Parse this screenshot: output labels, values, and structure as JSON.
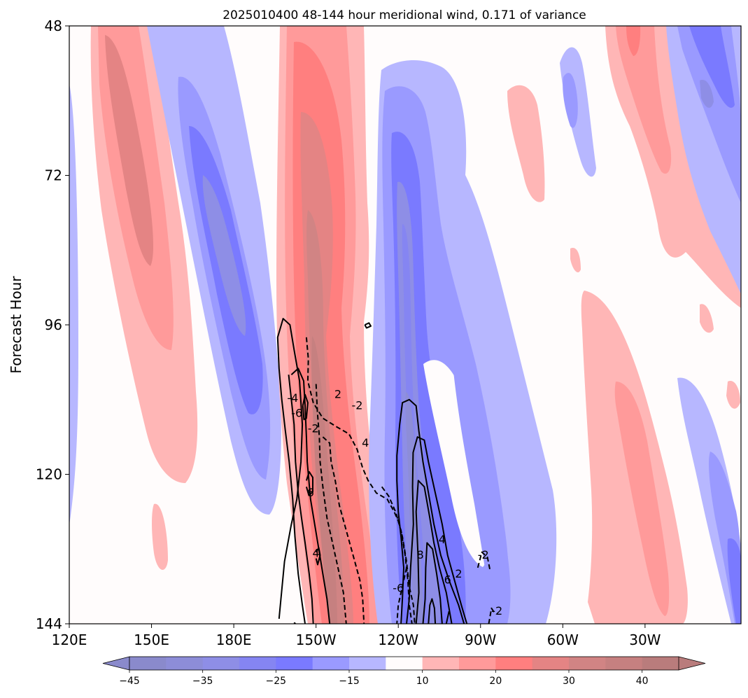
{
  "chart_data": {
    "type": "heatmap",
    "title": "2025010400 48-144 hour meridional wind, 0.171 of variance",
    "xlabel": "",
    "ylabel": "Forecast Hour",
    "x_ticks": [
      "120E",
      "150E",
      "180E",
      "150W",
      "120W",
      "90W",
      "60W",
      "30W"
    ],
    "x_tick_lon": [
      120,
      150,
      180,
      210,
      240,
      270,
      300,
      330
    ],
    "xlim": [
      120,
      365
    ],
    "y_ticks": [
      "48",
      "72",
      "96",
      "120",
      "144"
    ],
    "y_tick_values": [
      48,
      72,
      96,
      120,
      144
    ],
    "ylim": [
      48,
      144
    ],
    "y_inverted": true,
    "fill_levels": [
      -45,
      -40,
      -35,
      -30,
      -25,
      -20,
      -15,
      -10,
      10,
      15,
      20,
      25,
      30,
      35,
      40,
      45
    ],
    "fill_colors": [
      "#8a8acc",
      "#8d8dd8",
      "#8e8ee6",
      "#8585f2",
      "#7a7aff",
      "#9a9aff",
      "#b7b7ff",
      "#fffcfc",
      "#ffb6b6",
      "#ff9a9a",
      "#ff7f7f",
      "#e48484",
      "#d18484",
      "#c68080",
      "#b97c7c"
    ],
    "colorbar_ticks": [
      "−45",
      "−35",
      "−25",
      "−15",
      "10",
      "20",
      "30",
      "40"
    ],
    "contour_labels": [
      {
        "text": "-4",
        "lon": 201.5,
        "hr": 107.8
      },
      {
        "text": "-6",
        "lon": 203,
        "hr": 110.2
      },
      {
        "text": "-2",
        "lon": 209,
        "hr": 112.7
      },
      {
        "text": "6",
        "lon": 208,
        "hr": 123.0
      },
      {
        "text": "4",
        "lon": 210,
        "hr": 132.7
      },
      {
        "text": "2",
        "lon": 218,
        "hr": 107.2
      },
      {
        "text": "-2",
        "lon": 225,
        "hr": 109.0
      },
      {
        "text": "4",
        "lon": 228,
        "hr": 115.0
      },
      {
        "text": "-6",
        "lon": 240,
        "hr": 138.3
      },
      {
        "text": "8",
        "lon": 248,
        "hr": 133.0
      },
      {
        "text": "4",
        "lon": 256,
        "hr": 130.5
      },
      {
        "text": "2",
        "lon": 262,
        "hr": 136.0
      },
      {
        "text": "6",
        "lon": 258,
        "hr": 137.0
      },
      {
        "text": "-2",
        "lon": 271,
        "hr": 133.0
      },
      {
        "text": "-2",
        "lon": 276,
        "hr": 142.0
      }
    ],
    "contour_lines": [
      {
        "style": "solid",
        "pts": [
          [
            196.5,
            143.2
          ],
          [
            197.2,
            140
          ],
          [
            198.5,
            134
          ],
          [
            201,
            128
          ],
          [
            203,
            124
          ],
          [
            204.5,
            118
          ],
          [
            205,
            112
          ],
          [
            204,
            105
          ],
          [
            202,
            100
          ],
          [
            200.5,
            96
          ],
          [
            198,
            95
          ],
          [
            196,
            98
          ],
          [
            196.5,
            103
          ],
          [
            197.5,
            108
          ],
          [
            198.8,
            113
          ],
          [
            200.2,
            118
          ],
          [
            201.5,
            124
          ],
          [
            202.3,
            130
          ],
          [
            203.5,
            136
          ],
          [
            205,
            141
          ],
          [
            206,
            144
          ]
        ]
      },
      {
        "style": "solid",
        "pts": [
          [
            201,
            104
          ],
          [
            203.5,
            103
          ],
          [
            205.5,
            105
          ],
          [
            206,
            109
          ],
          [
            206.5,
            114
          ],
          [
            206.8,
            118
          ],
          [
            208,
            124
          ],
          [
            209.5,
            128
          ],
          [
            211,
            132
          ],
          [
            212.5,
            136
          ],
          [
            214,
            140
          ],
          [
            215,
            144
          ]
        ]
      },
      {
        "style": "solid",
        "pts": [
          [
            200,
            104
          ],
          [
            201,
            108
          ],
          [
            202,
            112
          ],
          [
            202.5,
            118
          ],
          [
            203.5,
            123
          ],
          [
            204.7,
            127
          ],
          [
            206,
            131
          ],
          [
            207.5,
            136
          ],
          [
            208.5,
            140
          ],
          [
            209,
            144
          ]
        ]
      },
      {
        "style": "solid",
        "pts": [
          [
            205.2,
            109
          ],
          [
            206,
            107.2
          ],
          [
            207,
            108.5
          ],
          [
            206.5,
            111
          ],
          [
            205.6,
            111.2
          ],
          [
            205.2,
            109
          ]
        ]
      },
      {
        "style": "solid",
        "pts": [
          [
            206.5,
            121
          ],
          [
            207.5,
            119.6
          ],
          [
            208.8,
            120.5
          ],
          [
            208.8,
            122.8
          ],
          [
            207.4,
            123.4
          ],
          [
            206.5,
            122
          ]
        ]
      },
      {
        "style": "solid",
        "pts": [
          [
            210,
            132.5
          ],
          [
            211,
            131.8
          ],
          [
            211.5,
            133
          ],
          [
            210.6,
            134.5
          ],
          [
            210,
            133.5
          ]
        ]
      },
      {
        "style": "dashed",
        "pts": [
          [
            206.5,
            98
          ],
          [
            207.2,
            101.5
          ],
          [
            207,
            105
          ],
          [
            209,
            108.5
          ],
          [
            212.5,
            111
          ],
          [
            218,
            112.5
          ],
          [
            222,
            113.5
          ],
          [
            225,
            116
          ],
          [
            227,
            119
          ],
          [
            229,
            121
          ],
          [
            232,
            123
          ],
          [
            236,
            124
          ],
          [
            238.5,
            126
          ],
          [
            240,
            127.5
          ],
          [
            241.5,
            130
          ],
          [
            243,
            134
          ],
          [
            244,
            138
          ],
          [
            245.5,
            141
          ],
          [
            246,
            144
          ]
        ]
      },
      {
        "style": "dashed",
        "pts": [
          [
            210,
            105.5
          ],
          [
            210.5,
            110
          ],
          [
            211.2,
            114
          ],
          [
            211.5,
            118
          ],
          [
            212.5,
            122
          ],
          [
            214,
            127
          ],
          [
            216,
            131
          ],
          [
            218,
            135
          ],
          [
            220,
            139
          ],
          [
            221,
            144
          ]
        ]
      },
      {
        "style": "dashed",
        "pts": [
          [
            212.5,
            114
          ],
          [
            215,
            115
          ],
          [
            215.5,
            118
          ],
          [
            217,
            121
          ],
          [
            218.5,
            125
          ],
          [
            221,
            129
          ],
          [
            223.5,
            133
          ],
          [
            226,
            137
          ],
          [
            227,
            140
          ],
          [
            227.5,
            144
          ]
        ]
      },
      {
        "style": "dashed",
        "pts": [
          [
            234,
            122
          ],
          [
            236.5,
            123.5
          ],
          [
            239,
            126
          ],
          [
            241,
            129
          ],
          [
            242.5,
            133
          ],
          [
            243.5,
            137
          ],
          [
            244,
            141
          ],
          [
            245,
            144
          ]
        ]
      },
      {
        "style": "solid",
        "pts": [
          [
            241,
            144
          ],
          [
            241.5,
            140
          ],
          [
            242,
            135
          ],
          [
            241,
            130
          ],
          [
            240,
            126
          ],
          [
            239.5,
            121
          ],
          [
            239.5,
            117
          ],
          [
            240.5,
            112
          ],
          [
            241.5,
            108.5
          ],
          [
            244,
            108
          ],
          [
            246.5,
            109
          ],
          [
            247.5,
            113
          ],
          [
            249,
            118
          ],
          [
            251,
            123
          ],
          [
            253,
            128
          ],
          [
            255.5,
            133
          ],
          [
            258.5,
            137
          ],
          [
            262,
            141
          ],
          [
            264,
            144
          ]
        ]
      },
      {
        "style": "solid",
        "pts": [
          [
            243,
            144
          ],
          [
            244,
            140
          ],
          [
            244.5,
            135
          ],
          [
            245.5,
            128
          ],
          [
            245.2,
            122
          ],
          [
            245.4,
            116.5
          ],
          [
            247,
            114
          ],
          [
            249.5,
            114.5
          ],
          [
            251,
            118
          ],
          [
            253.5,
            123
          ],
          [
            256,
            128
          ],
          [
            258,
            133
          ],
          [
            260.5,
            137
          ],
          [
            263,
            141
          ],
          [
            265,
            144
          ]
        ]
      },
      {
        "style": "solid",
        "pts": [
          [
            246.5,
            144
          ],
          [
            247.5,
            139
          ],
          [
            247.2,
            133
          ],
          [
            246.5,
            126
          ],
          [
            247.3,
            121
          ],
          [
            249.5,
            122
          ],
          [
            251.5,
            127
          ],
          [
            253,
            131
          ],
          [
            255,
            135
          ],
          [
            257.5,
            139
          ],
          [
            259.5,
            144
          ]
        ]
      },
      {
        "style": "solid",
        "pts": [
          [
            249,
            144
          ],
          [
            249.8,
            140
          ],
          [
            250,
            135
          ],
          [
            250.5,
            131
          ],
          [
            252.5,
            132
          ],
          [
            254,
            136
          ],
          [
            255.3,
            140
          ],
          [
            256,
            144
          ]
        ]
      },
      {
        "style": "solid",
        "pts": [
          [
            251,
            144
          ],
          [
            251.5,
            141
          ],
          [
            252.3,
            140
          ],
          [
            253.2,
            141.5
          ],
          [
            253.5,
            144
          ]
        ]
      },
      {
        "style": "solid",
        "pts": [
          [
            257.5,
            144
          ],
          [
            258.5,
            142
          ]
        ]
      },
      {
        "style": "dashed",
        "pts": [
          [
            269,
            135
          ],
          [
            270.5,
            132.5
          ],
          [
            272.5,
            133.3
          ],
          [
            273.5,
            135.5
          ]
        ]
      },
      {
        "style": "dashed",
        "pts": [
          [
            273,
            144
          ],
          [
            274,
            141.5
          ],
          [
            275.5,
            142.5
          ]
        ]
      },
      {
        "style": "dashed",
        "pts": [
          [
            243,
            135
          ],
          [
            241.5,
            138
          ],
          [
            240,
            141
          ],
          [
            239.5,
            144
          ]
        ]
      },
      {
        "style": "solid",
        "pts": [
          [
            227.8,
            96
          ],
          [
            229.3,
            95.7
          ],
          [
            230,
            96.2
          ],
          [
            228.4,
            96.5
          ],
          [
            227.8,
            96
          ]
        ]
      },
      {
        "style": "solid",
        "pts": [
          [
            202,
            143.8
          ],
          [
            202.5,
            144
          ]
        ]
      }
    ]
  }
}
